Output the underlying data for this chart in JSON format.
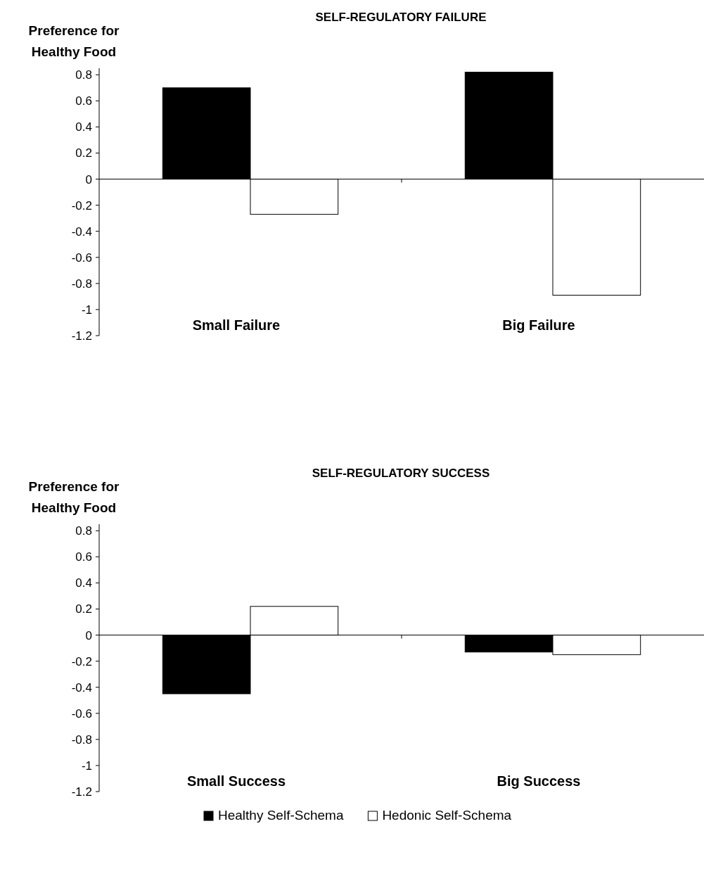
{
  "chart_data": [
    {
      "type": "bar",
      "title": "SELF-REGULATORY FAILURE",
      "ylabel": "Preference for Healthy Food",
      "categories": [
        "Small Failure",
        "Big Failure"
      ],
      "series": [
        {
          "color": "#000000",
          "values": [
            0.7,
            0.82
          ]
        },
        {
          "color": "#ffffff",
          "values": [
            -0.27,
            -0.89
          ]
        }
      ],
      "ylim": [
        -1.2,
        0.85
      ],
      "yticks": [
        -1.2,
        -1,
        -0.8,
        -0.6,
        -0.4,
        -0.2,
        0,
        0.2,
        0.4,
        0.6,
        0.8
      ]
    },
    {
      "type": "bar",
      "title": "SELF-REGULATORY SUCCESS",
      "ylabel": "Preference for Healthy Food",
      "categories": [
        "Small Success",
        "Big Success"
      ],
      "series": [
        {
          "name": "Healthy Self-Schema",
          "color": "#000000",
          "values": [
            -0.45,
            -0.13
          ]
        },
        {
          "name": "Hedonic Self-Schema",
          "color": "#ffffff",
          "values": [
            0.22,
            -0.15
          ]
        }
      ],
      "ylim": [
        -1.2,
        0.85
      ],
      "yticks": [
        -1.2,
        -1,
        -0.8,
        -0.6,
        -0.4,
        -0.2,
        0,
        0.2,
        0.4,
        0.6,
        0.8
      ],
      "legend": "bottom"
    }
  ]
}
